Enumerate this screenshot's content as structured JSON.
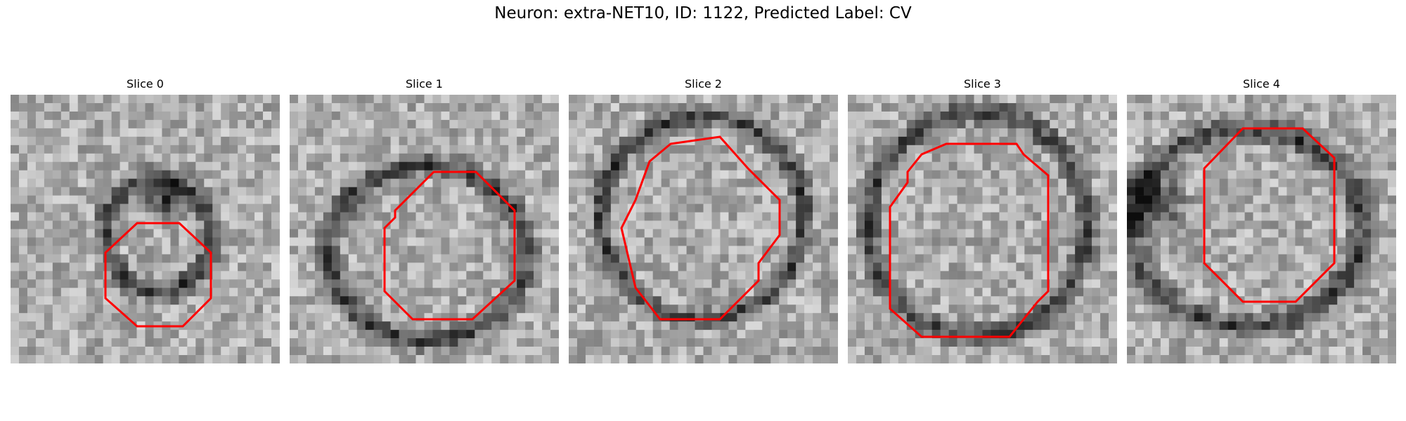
{
  "figure": {
    "title": "Neuron: extra-NET10, ID: 1122, Predicted Label: CV",
    "outline_color": "#ff0000",
    "colormap": "grayscale",
    "panels": [
      {
        "title": "Slice 0"
      },
      {
        "title": "Slice 1"
      },
      {
        "title": "Slice 2"
      },
      {
        "title": "Slice 3"
      },
      {
        "title": "Slice 4"
      }
    ]
  }
}
